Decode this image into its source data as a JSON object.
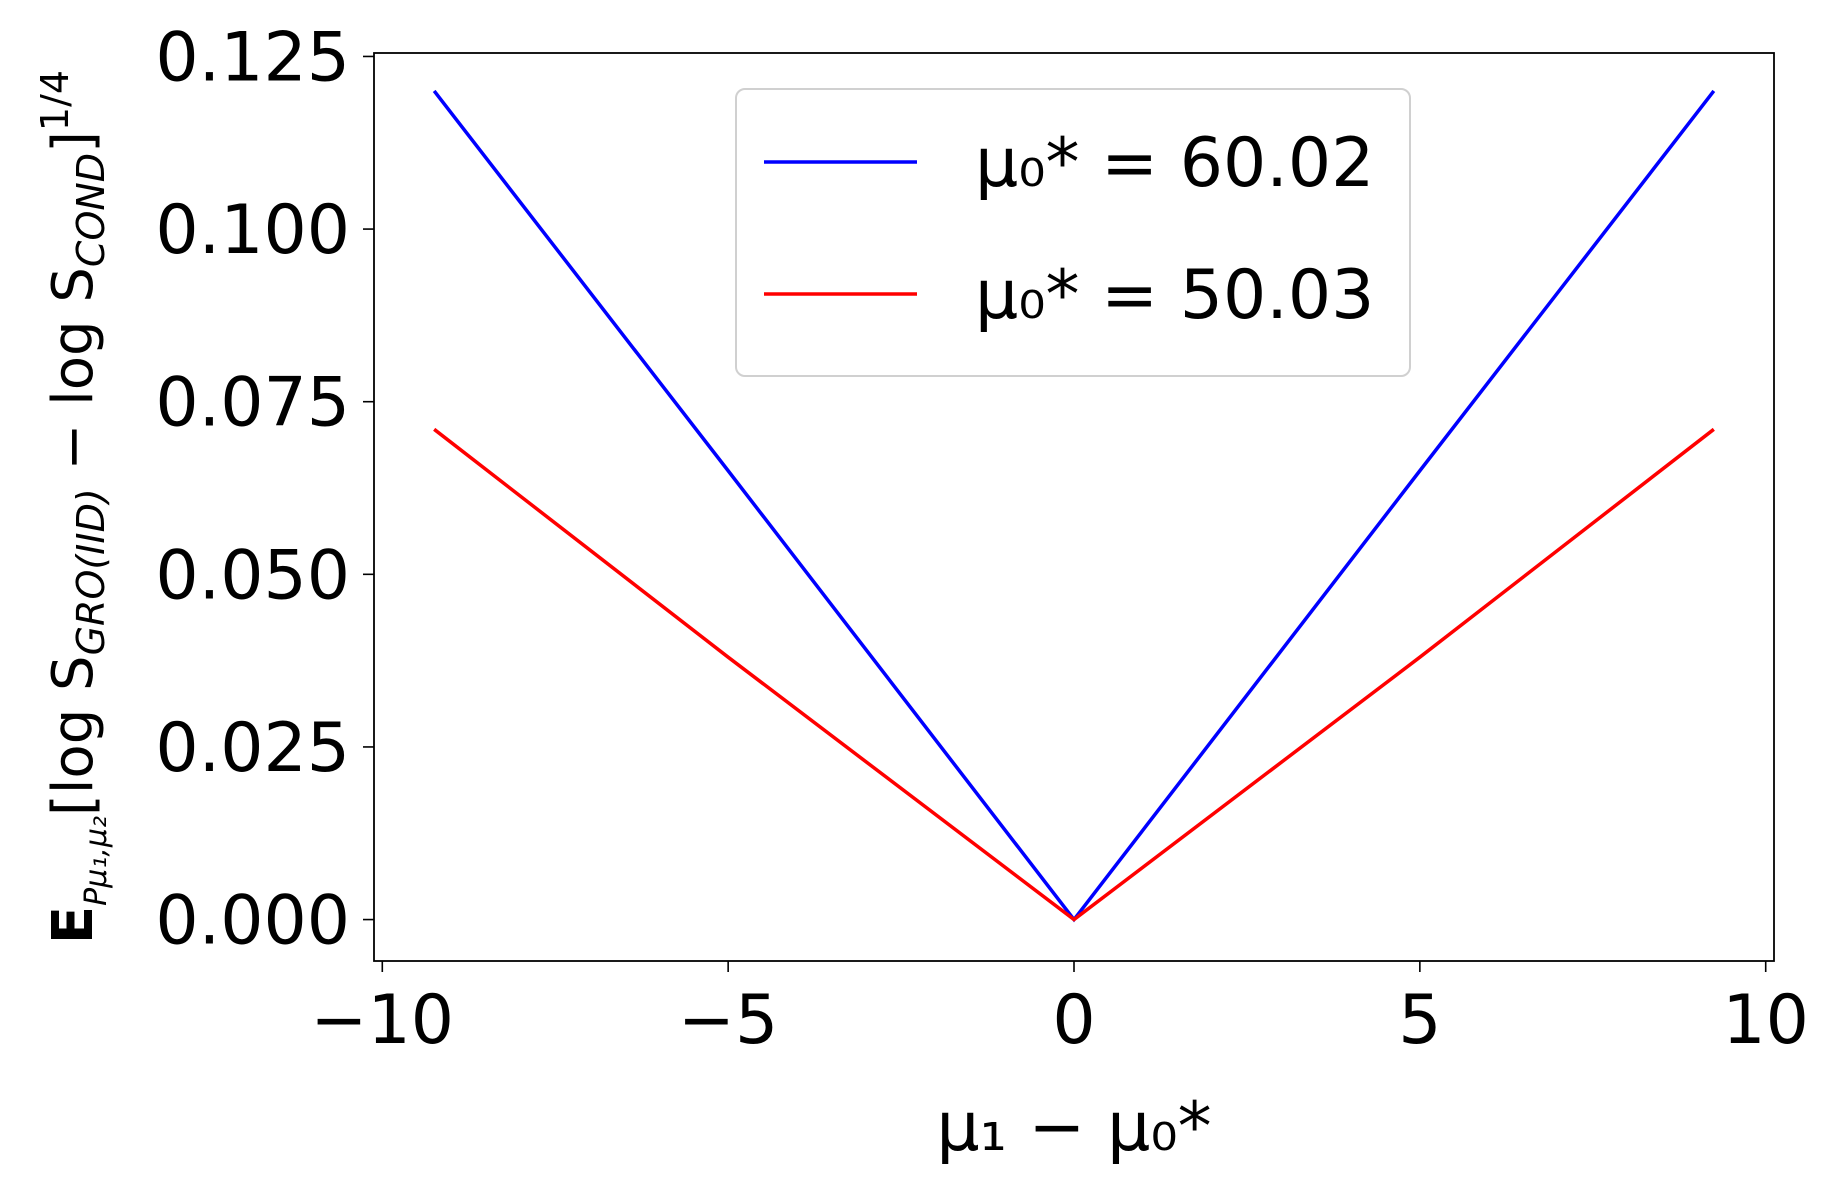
{
  "chart_data": {
    "type": "line",
    "xlabel": "μ₁ − μ₀*",
    "ylabel": [
      "E",
      "Pμ₁,μ₂",
      "[log S",
      "GRO(IID)",
      " − log S",
      "COND",
      "]",
      "1/4"
    ],
    "x": [
      -9.25,
      -5,
      0,
      5,
      9.25
    ],
    "series": [
      {
        "name": "μ₀* = 60.02",
        "color": "#0000ff",
        "values": [
          0.12,
          0.065,
          0,
          0.065,
          0.12
        ]
      },
      {
        "name": "μ₀* = 50.03",
        "color": "#ff0000",
        "values": [
          0.071,
          0.038,
          0,
          0.038,
          0.071
        ]
      }
    ],
    "xlim": [
      -10.12,
      10.12
    ],
    "ylim": [
      -0.006,
      0.1255
    ],
    "xticks": [
      {
        "value": -10,
        "label": "−10"
      },
      {
        "value": -5,
        "label": "−5"
      },
      0,
      5,
      10
    ],
    "yticks": [
      {
        "value": 0,
        "label": "0.000"
      },
      {
        "value": 0.025,
        "label": "0.025"
      },
      {
        "value": 0.05,
        "label": "0.050"
      },
      {
        "value": 0.075,
        "label": "0.075"
      },
      {
        "value": 0.1,
        "label": "0.100"
      },
      {
        "value": 0.125,
        "label": "0.125"
      }
    ],
    "legend": "upper center",
    "grid": false
  }
}
